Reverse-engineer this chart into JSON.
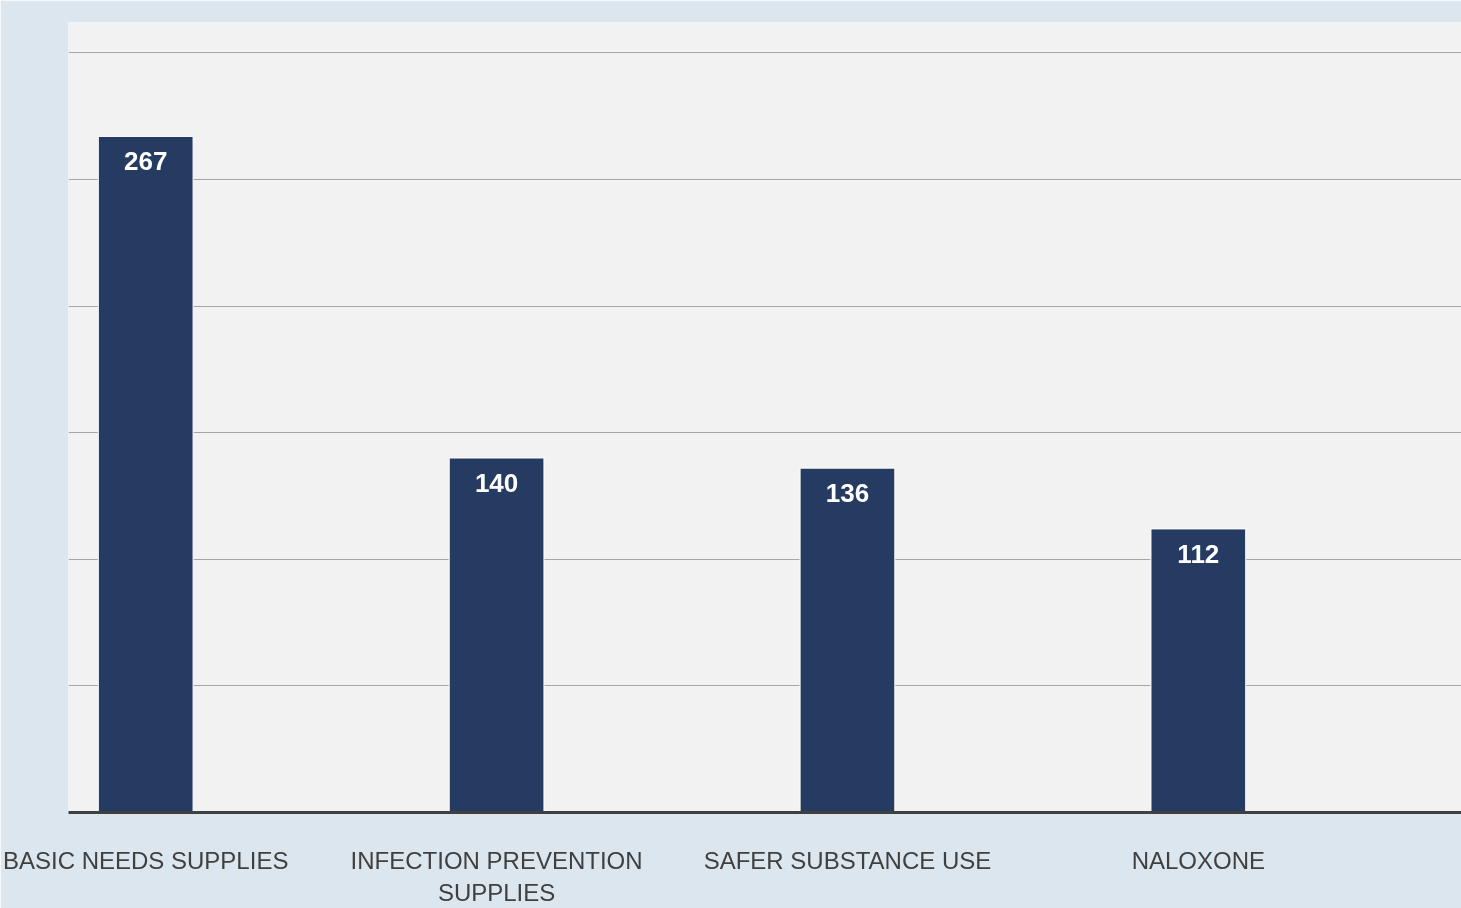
{
  "chart_data": {
    "type": "bar",
    "categories": [
      "BASIC NEEDS SUPPLIES",
      "INFECTION PREVENTION SUPPLIES",
      "SAFER SUBSTANCE USE",
      "NALOXONE"
    ],
    "values": [
      267,
      140,
      136,
      112
    ],
    "color": "#253b62",
    "data_labels": true,
    "ylim": [
      0,
      312
    ],
    "yticks": [
      {
        "value": 0,
        "label": null
      },
      {
        "value": 50,
        "label": null
      },
      {
        "value": 100,
        "label": null
      },
      {
        "value": 150,
        "label": null
      },
      {
        "value": 200,
        "label": null
      },
      {
        "value": 250,
        "label": null
      },
      {
        "value": 300,
        "label": null
      }
    ],
    "grid": "y",
    "tick_labels": "x"
  }
}
